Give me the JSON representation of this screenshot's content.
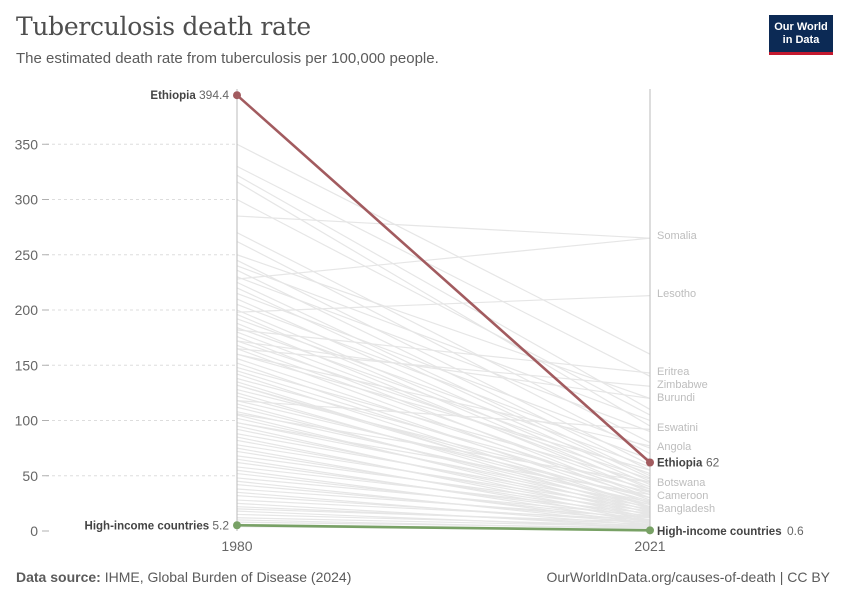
{
  "header": {
    "title": "Tuberculosis death rate",
    "subtitle": "The estimated death rate from tuberculosis per 100,000 people.",
    "logo_line1": "Our World",
    "logo_line2": "in Data"
  },
  "footer": {
    "source_label": "Data source:",
    "source_text": "IHME, Global Burden of Disease (2024)",
    "link_text": "OurWorldInData.org/causes-of-death | CC BY"
  },
  "colors": {
    "ethiopia": "#a25b5f",
    "high_income": "#78a165",
    "background_lines": "#e6e6e6",
    "grid": "#dddddd",
    "axis_text": "#666666"
  },
  "chart_data": {
    "type": "slope",
    "x": [
      "1980",
      "2021"
    ],
    "ylim": [
      0,
      400
    ],
    "yticks": [
      0,
      50,
      100,
      150,
      200,
      250,
      300,
      350
    ],
    "highlighted": [
      {
        "name": "Ethiopia",
        "values": [
          394.4,
          62
        ],
        "start_label": "394.4",
        "end_label": "62",
        "color_key": "ethiopia"
      },
      {
        "name": "High-income countries",
        "values": [
          5.2,
          0.6
        ],
        "start_label": "5.2",
        "end_label": "0.6",
        "color_key": "high_income"
      }
    ],
    "labeled_background": [
      {
        "name": "Somalia",
        "values": [
          228,
          265
        ]
      },
      {
        "name": "Lesotho",
        "values": [
          198,
          213
        ]
      },
      {
        "name": "Eritrea",
        "values": [
          182,
          143
        ]
      },
      {
        "name": "Zimbabwe",
        "values": [
          165,
          131
        ]
      },
      {
        "name": "Burundi",
        "values": [
          172,
          120
        ]
      },
      {
        "name": "Eswatini",
        "values": [
          118,
          92
        ]
      },
      {
        "name": "Angola",
        "values": [
          160,
          77
        ]
      },
      {
        "name": "Botswana",
        "values": [
          106,
          44
        ]
      },
      {
        "name": "Cameroon",
        "values": [
          98,
          33
        ]
      },
      {
        "name": "Bangladesh",
        "values": [
          132,
          22
        ]
      }
    ],
    "background_series": [
      [
        350,
        160
      ],
      [
        330,
        140
      ],
      [
        322,
        110
      ],
      [
        316,
        95
      ],
      [
        300,
        105
      ],
      [
        285,
        265
      ],
      [
        270,
        80
      ],
      [
        262,
        70
      ],
      [
        250,
        120
      ],
      [
        245,
        60
      ],
      [
        240,
        100
      ],
      [
        236,
        55
      ],
      [
        230,
        90
      ],
      [
        225,
        50
      ],
      [
        220,
        48
      ],
      [
        215,
        75
      ],
      [
        210,
        45
      ],
      [
        205,
        65
      ],
      [
        200,
        42
      ],
      [
        196,
        38
      ],
      [
        192,
        58
      ],
      [
        188,
        35
      ],
      [
        184,
        52
      ],
      [
        180,
        40
      ],
      [
        176,
        30
      ],
      [
        172,
        47
      ],
      [
        168,
        36
      ],
      [
        165,
        28
      ],
      [
        160,
        55
      ],
      [
        156,
        33
      ],
      [
        152,
        25
      ],
      [
        148,
        44
      ],
      [
        145,
        30
      ],
      [
        142,
        22
      ],
      [
        138,
        38
      ],
      [
        135,
        20
      ],
      [
        132,
        27
      ],
      [
        128,
        35
      ],
      [
        125,
        18
      ],
      [
        122,
        24
      ],
      [
        118,
        30
      ],
      [
        115,
        16
      ],
      [
        112,
        21
      ],
      [
        108,
        26
      ],
      [
        105,
        14
      ],
      [
        102,
        19
      ],
      [
        98,
        24
      ],
      [
        95,
        12
      ],
      [
        92,
        17
      ],
      [
        88,
        22
      ],
      [
        85,
        10
      ],
      [
        82,
        15
      ],
      [
        78,
        20
      ],
      [
        75,
        9
      ],
      [
        72,
        13
      ],
      [
        68,
        18
      ],
      [
        65,
        8
      ],
      [
        62,
        12
      ],
      [
        58,
        16
      ],
      [
        55,
        7
      ],
      [
        52,
        10
      ],
      [
        48,
        14
      ],
      [
        45,
        6
      ],
      [
        42,
        9
      ],
      [
        38,
        12
      ],
      [
        35,
        5
      ],
      [
        32,
        8
      ],
      [
        28,
        10
      ],
      [
        25,
        4
      ],
      [
        22,
        6
      ],
      [
        20,
        8
      ],
      [
        18,
        3
      ],
      [
        15,
        5
      ],
      [
        12,
        4
      ],
      [
        10,
        2
      ],
      [
        8,
        3
      ],
      [
        6,
        1.5
      ],
      [
        4,
        1
      ]
    ]
  }
}
